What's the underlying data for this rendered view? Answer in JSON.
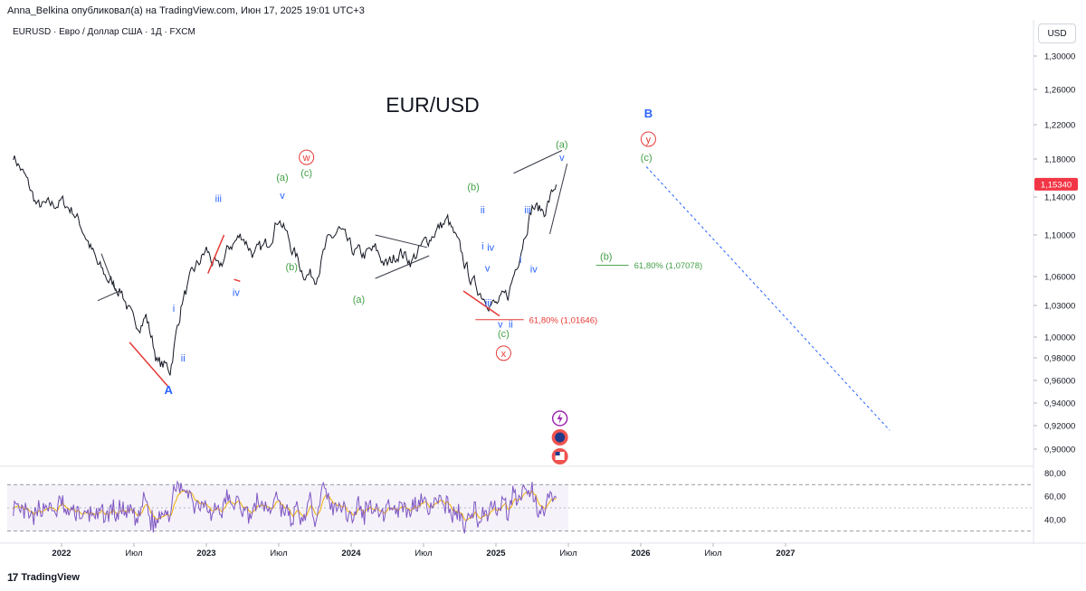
{
  "header": {
    "publish_line": "Anna_Belkina опубликовал(а) на TradingView.com, Июн 17, 2025 19:01 UTC+3",
    "symbol_line": "EURUSD · Евро / Доллар США · 1Д · FXCM",
    "currency_button": "USD"
  },
  "footer": {
    "brand": "TradingView",
    "logo_glyph": "17"
  },
  "chart_data": {
    "type": "line",
    "title": "EUR/USD",
    "symbol": "EURUSD",
    "timeframe": "1D",
    "last_price": 1.1534,
    "last_price_label": "1,15340",
    "price_axis": {
      "ticks": [
        1.3,
        1.26,
        1.22,
        1.18,
        1.14,
        1.1,
        1.06,
        1.03,
        1.0,
        0.98,
        0.96,
        0.94,
        0.92,
        0.9
      ],
      "tick_labels": [
        "1,30000",
        "1,26000",
        "1,22000",
        "1,18000",
        "1,14000",
        "1,10000",
        "1,06000",
        "1,03000",
        "1,00000",
        "0,98000",
        "0,96000",
        "0,94000",
        "0,92000",
        "0,90000"
      ]
    },
    "time_axis": {
      "tick_labels": [
        "2022",
        "Июл",
        "2023",
        "Июл",
        "2024",
        "Июл",
        "2025",
        "Июл",
        "2026",
        "Июл",
        "2027"
      ],
      "bold": [
        true,
        false,
        true,
        false,
        true,
        false,
        true,
        false,
        true,
        false,
        true
      ]
    },
    "price_series": {
      "x": [
        "2021-09",
        "2021-10",
        "2021-11",
        "2021-12",
        "2022-01",
        "2022-02",
        "2022-03",
        "2022-04",
        "2022-05",
        "2022-06",
        "2022-07",
        "2022-08",
        "2022-09",
        "2022-10",
        "2022-11",
        "2022-12",
        "2023-01",
        "2023-02",
        "2023-03",
        "2023-04",
        "2023-05",
        "2023-06",
        "2023-07",
        "2023-08",
        "2023-09",
        "2023-10",
        "2023-11",
        "2023-12",
        "2024-01",
        "2024-02",
        "2024-03",
        "2024-04",
        "2024-05",
        "2024-06",
        "2024-07",
        "2024-08",
        "2024-09",
        "2024-10",
        "2024-11",
        "2024-12",
        "2025-01",
        "2025-02",
        "2025-03",
        "2025-04",
        "2025-05",
        "2025-06"
      ],
      "y": [
        1.185,
        1.16,
        1.13,
        1.13,
        1.135,
        1.125,
        1.1,
        1.07,
        1.055,
        1.045,
        1.01,
        1.02,
        0.975,
        0.97,
        1.035,
        1.065,
        1.085,
        1.065,
        1.09,
        1.1,
        1.08,
        1.09,
        1.12,
        1.09,
        1.065,
        1.06,
        1.09,
        1.105,
        1.085,
        1.08,
        1.085,
        1.07,
        1.085,
        1.075,
        1.09,
        1.105,
        1.115,
        1.085,
        1.055,
        1.04,
        1.03,
        1.04,
        1.085,
        1.13,
        1.125,
        1.153
      ]
    },
    "wave_labels": [
      {
        "text": "A",
        "x": "2022-09-27",
        "y": 0.948,
        "color": "#2962ff"
      },
      {
        "text": "i",
        "x": "2022-10-10",
        "y": 1.024,
        "color": "#2962ff"
      },
      {
        "text": "ii",
        "x": "2022-11-03",
        "y": 0.977,
        "color": "#2962ff"
      },
      {
        "text": "iii",
        "x": "2023-02-01",
        "y": 1.135,
        "color": "#2962ff"
      },
      {
        "text": "iv",
        "x": "2023-03-15",
        "y": 1.04,
        "color": "#2962ff"
      },
      {
        "text": "(a)",
        "x": "2023-07-10",
        "y": 1.157,
        "color": "#43a047"
      },
      {
        "text": "v",
        "x": "2023-07-10",
        "y": 1.138,
        "color": "#2962ff"
      },
      {
        "text": "(b)",
        "x": "2023-08-03",
        "y": 1.066,
        "color": "#43a047"
      },
      {
        "text": "(c)",
        "x": "2023-09-10",
        "y": 1.162,
        "color": "#43a047"
      },
      {
        "text": "w",
        "x": "2023-09-10",
        "y": 1.178,
        "color": "#e53935",
        "circled": true
      },
      {
        "text": "(a)",
        "x": "2024-01-20",
        "y": 1.033,
        "color": "#43a047"
      },
      {
        "text": "(b)",
        "x": "2024-11-05",
        "y": 1.147,
        "color": "#43a047"
      },
      {
        "text": "ii",
        "x": "2024-11-28",
        "y": 1.123,
        "color": "#2962ff"
      },
      {
        "text": "i",
        "x": "2024-11-28",
        "y": 1.086,
        "color": "#2962ff"
      },
      {
        "text": "iv",
        "x": "2024-12-18",
        "y": 1.085,
        "color": "#2962ff"
      },
      {
        "text": "v",
        "x": "2024-12-10",
        "y": 1.065,
        "color": "#2962ff"
      },
      {
        "text": "iii",
        "x": "2024-12-12",
        "y": 1.029,
        "color": "#2962ff"
      },
      {
        "text": "v",
        "x": "2025-01-12",
        "y": 1.009,
        "color": "#2962ff"
      },
      {
        "text": "ii",
        "x": "2025-02-08",
        "y": 1.009,
        "color": "#2962ff"
      },
      {
        "text": "(c)",
        "x": "2025-01-20",
        "y": 1.0,
        "color": "#43a047"
      },
      {
        "text": "x",
        "x": "2025-01-20",
        "y": 0.981,
        "color": "#e53935",
        "circled": true
      },
      {
        "text": "i",
        "x": "2025-03-02",
        "y": 1.073,
        "color": "#2962ff"
      },
      {
        "text": "iii",
        "x": "2025-03-20",
        "y": 1.123,
        "color": "#2962ff"
      },
      {
        "text": "iv",
        "x": "2025-04-05",
        "y": 1.064,
        "color": "#2962ff"
      },
      {
        "text": "(a)",
        "x": "2025-06-15",
        "y": 1.193,
        "color": "#43a047"
      },
      {
        "text": "v",
        "x": "2025-06-15",
        "y": 1.178,
        "color": "#2962ff"
      },
      {
        "text": "(b)",
        "x": "2025-10-05",
        "y": 1.076,
        "color": "#43a047"
      },
      {
        "text": "(c)",
        "x": "2026-01-15",
        "y": 1.178,
        "color": "#43a047"
      },
      {
        "text": "y",
        "x": "2026-01-20",
        "y": 1.199,
        "color": "#e53935",
        "circled": true
      },
      {
        "text": "B",
        "x": "2026-01-20",
        "y": 1.228,
        "color": "#2962ff"
      }
    ],
    "fib_levels": [
      {
        "label": "61,80% (1,01646)",
        "y": 1.01646,
        "color": "#e53935",
        "x_start": "2024-11-10",
        "x_end": "2025-03-10"
      },
      {
        "label": "61,80% (1,07078)",
        "y": 1.07078,
        "color": "#43a047",
        "x_start": "2025-09-10",
        "x_end": "2025-12-01"
      }
    ],
    "annotations": {
      "projection_line": {
        "from": {
          "x": "2026-01-15",
          "y": 1.172
        },
        "to": {
          "x": "2027-09-20",
          "y": 0.916
        },
        "color": "#2962ff",
        "style": "dashed"
      }
    },
    "rsi": {
      "levels": [
        70,
        50,
        30
      ],
      "tick_labels": [
        "80,00",
        "60,00",
        "40,00"
      ],
      "band_color": "#7e57c2"
    },
    "event_icons": [
      "lightning-icon",
      "flag-icon",
      "us-flag-icon"
    ],
    "colors": {
      "price": "#131722",
      "fib_red": "#e53935",
      "fib_green": "#43a047",
      "wave_blue": "#2962ff",
      "rsi_line": "#7e57c2",
      "rsi_ma": "#f0b000",
      "last_price_bg": "#f23645"
    }
  }
}
